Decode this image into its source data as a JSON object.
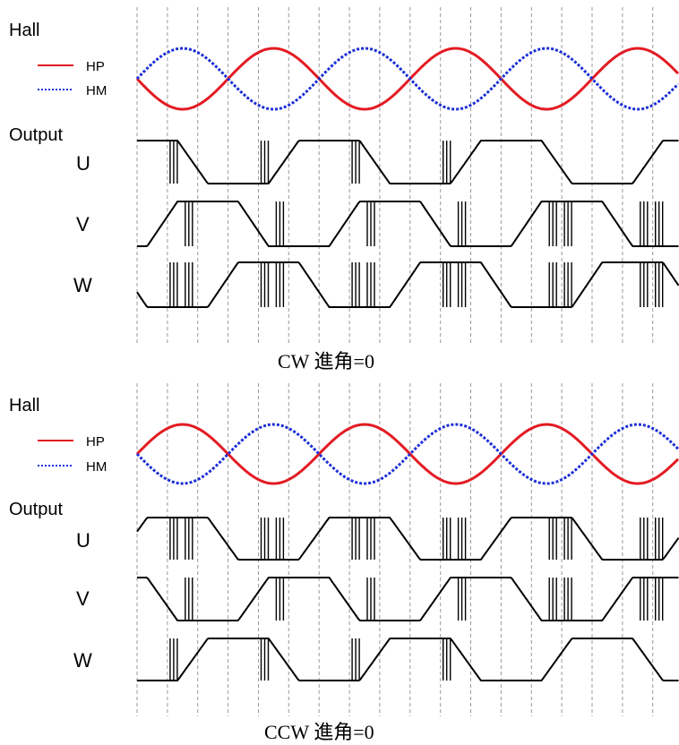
{
  "colors": {
    "hp": "#e31b23",
    "hm": "#1c2fd6",
    "output": "#000000",
    "grid": "#9a9a9a"
  },
  "panels": [
    {
      "hall_label": "Hall",
      "legend": [
        {
          "label": "HP",
          "style": "solid"
        },
        {
          "label": "HM",
          "style": "dotted"
        }
      ],
      "output_label": "Output",
      "phase_labels": [
        "U",
        "V",
        "W"
      ],
      "caption": "CW 進角=0"
    },
    {
      "hall_label": "Hall",
      "legend": [
        {
          "label": "HP",
          "style": "solid"
        },
        {
          "label": "HM",
          "style": "dotted"
        }
      ],
      "output_label": "Output",
      "phase_labels": [
        "U",
        "V",
        "W"
      ],
      "caption": "CCW 進角=0"
    }
  ]
}
